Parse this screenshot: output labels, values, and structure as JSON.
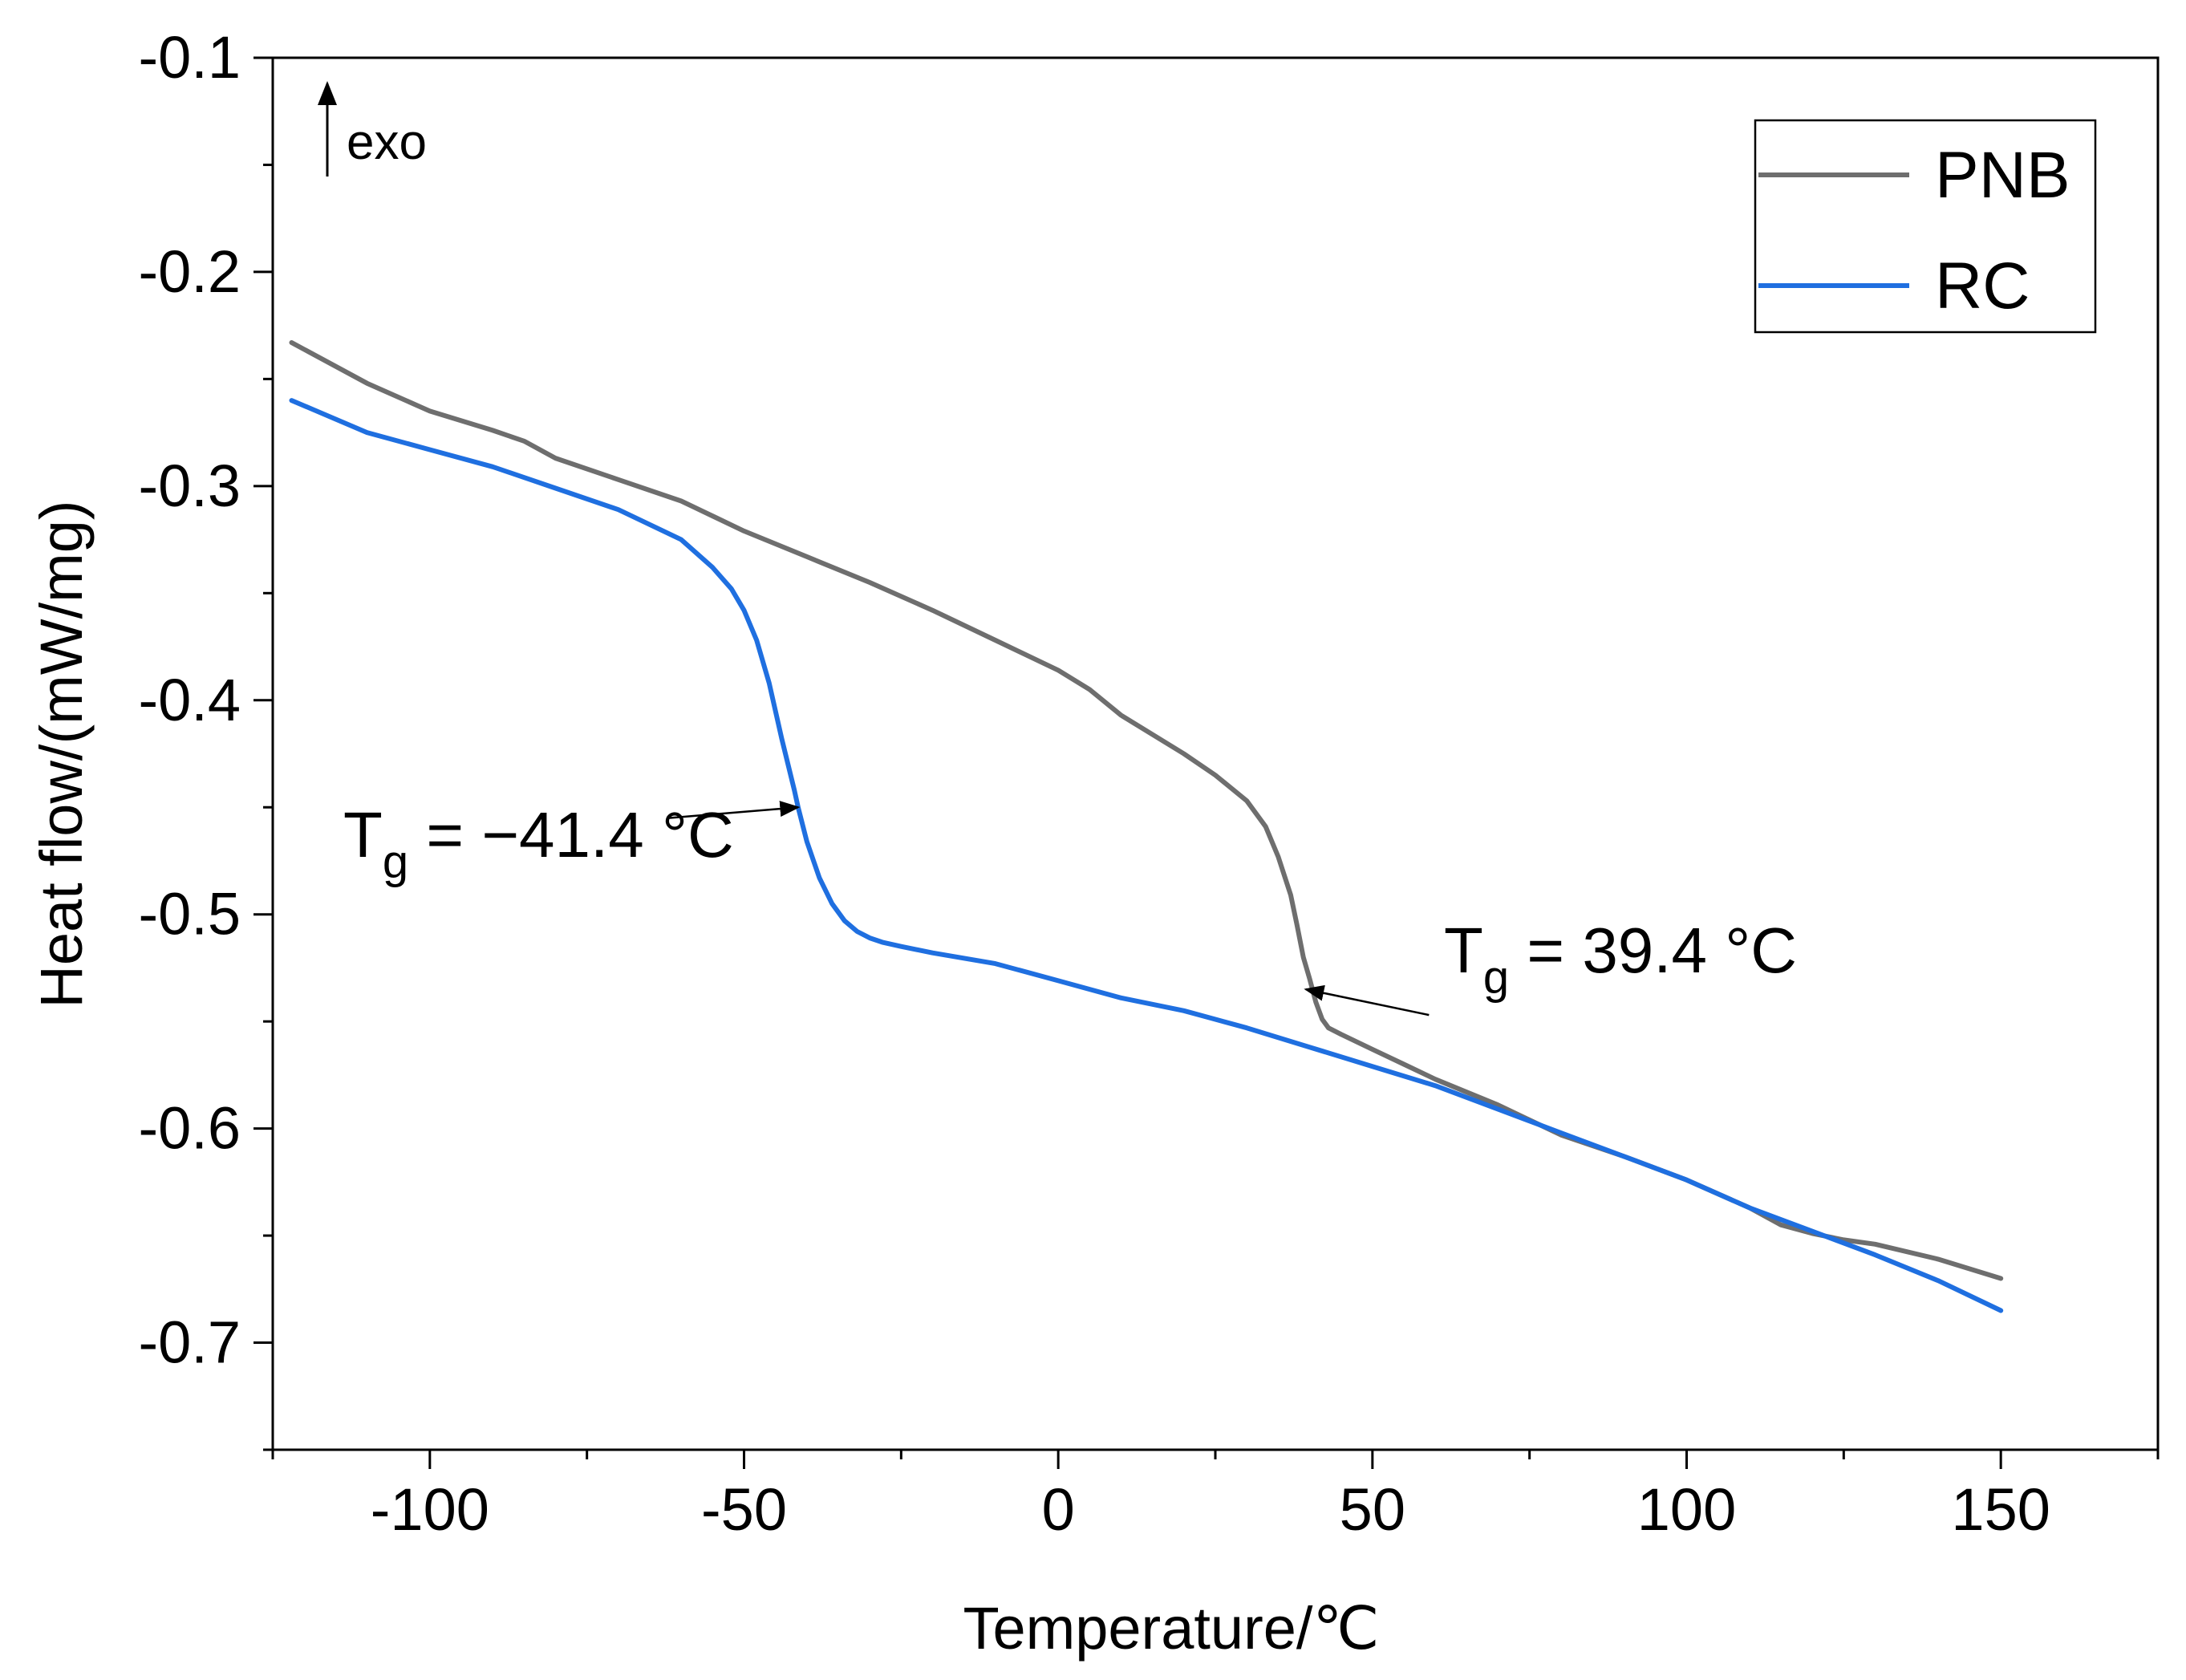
{
  "chart_data": {
    "type": "line",
    "xlabel": "Temperature/℃",
    "ylabel": "Heat flow/(mW/mg)",
    "xlim": [
      -125,
      175
    ],
    "ylim": [
      -0.75,
      -0.1
    ],
    "xticks": [
      -100,
      -50,
      0,
      50,
      100,
      150
    ],
    "xtick_labels": [
      "-100",
      "-50",
      "0",
      "50",
      "100",
      "150"
    ],
    "yticks": [
      -0.7,
      -0.6,
      -0.5,
      -0.4,
      -0.3,
      -0.2,
      -0.1
    ],
    "ytick_labels": [
      "-0.7",
      "-0.6",
      "-0.5",
      "-0.4",
      "-0.3",
      "-0.2",
      "-0.1"
    ],
    "exo_label": "exo",
    "legend_position": "top-right",
    "series": [
      {
        "name": "PNB",
        "color": "#6e6e6e",
        "x": [
          -122,
          -110,
          -100,
          -90,
          -85,
          -80,
          -70,
          -60,
          -50,
          -40,
          -30,
          -20,
          -10,
          0,
          5,
          10,
          20,
          25,
          30,
          33,
          35,
          37,
          38,
          39,
          40,
          41,
          42,
          43,
          45,
          50,
          55,
          60,
          70,
          80,
          90,
          100,
          110,
          115,
          120,
          125,
          130,
          140,
          150
        ],
        "y": [
          -0.233,
          -0.252,
          -0.265,
          -0.274,
          -0.279,
          -0.287,
          -0.297,
          -0.307,
          -0.321,
          -0.333,
          -0.345,
          -0.358,
          -0.372,
          -0.386,
          -0.395,
          -0.407,
          -0.425,
          -0.435,
          -0.447,
          -0.459,
          -0.473,
          -0.491,
          -0.505,
          -0.52,
          -0.53,
          -0.541,
          -0.549,
          -0.553,
          -0.556,
          -0.563,
          -0.57,
          -0.577,
          -0.589,
          -0.603,
          -0.613,
          -0.624,
          -0.637,
          -0.645,
          -0.649,
          -0.652,
          -0.654,
          -0.661,
          -0.67
        ]
      },
      {
        "name": "RC",
        "color": "#1f6fe0",
        "x": [
          -122,
          -110,
          -100,
          -90,
          -80,
          -70,
          -60,
          -55,
          -52,
          -50,
          -48,
          -46,
          -44,
          -42,
          -41.4,
          -40,
          -38,
          -36,
          -34,
          -32,
          -30,
          -28,
          -25,
          -20,
          -10,
          0,
          10,
          20,
          30,
          40,
          50,
          60,
          70,
          80,
          90,
          100,
          110,
          120,
          130,
          140,
          150
        ],
        "y": [
          -0.26,
          -0.275,
          -0.283,
          -0.291,
          -0.301,
          -0.311,
          -0.325,
          -0.338,
          -0.348,
          -0.358,
          -0.372,
          -0.392,
          -0.418,
          -0.442,
          -0.45,
          -0.466,
          -0.483,
          -0.495,
          -0.503,
          -0.508,
          -0.511,
          -0.513,
          -0.515,
          -0.518,
          -0.523,
          -0.531,
          -0.539,
          -0.545,
          -0.553,
          -0.562,
          -0.571,
          -0.58,
          -0.591,
          -0.602,
          -0.613,
          -0.624,
          -0.637,
          -0.648,
          -0.659,
          -0.671,
          -0.685
        ]
      }
    ],
    "annotations": [
      {
        "prefix": "T",
        "sub": "g",
        "value": " = −41.4 °C",
        "target": [
          -41.4,
          -0.45
        ],
        "from": [
          -62,
          -0.455
        ]
      },
      {
        "prefix": "T",
        "sub": "g",
        "value": " = 39.4 °C",
        "target": [
          39.4,
          -0.535
        ],
        "from": [
          59,
          -0.547
        ]
      }
    ]
  }
}
